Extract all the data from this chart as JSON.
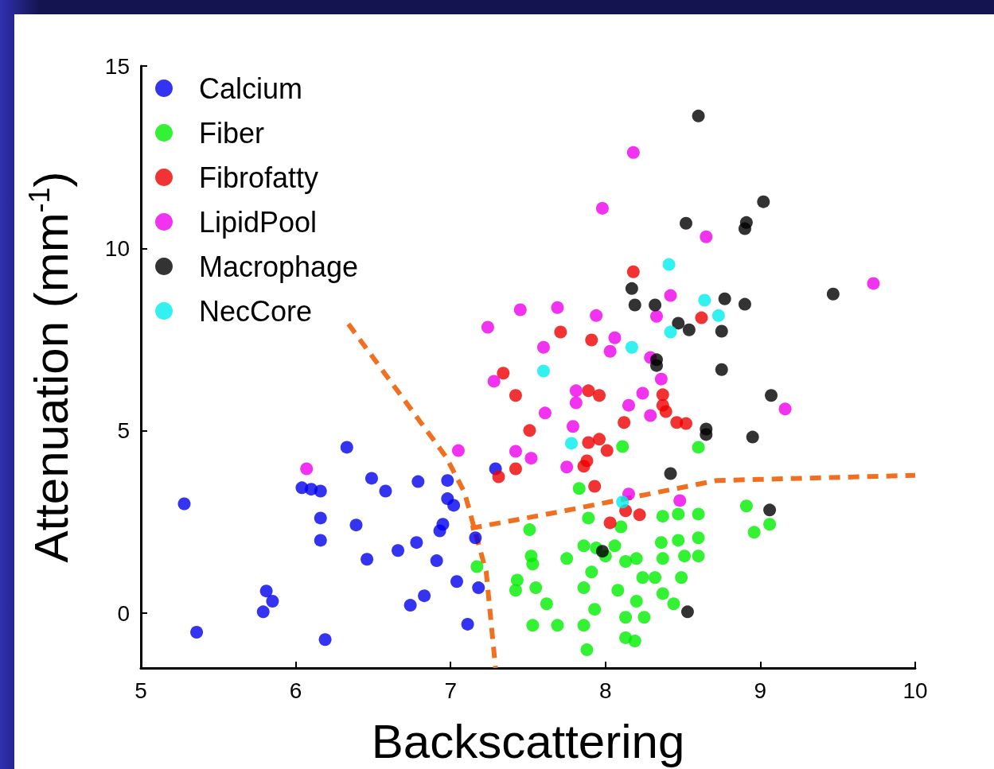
{
  "chart_data": {
    "type": "scatter",
    "xlabel": "Backscattering",
    "ylabel": "Attenuation (mm$^{-1}$)",
    "xlim": [
      5,
      10
    ],
    "ylim": [
      -1.5,
      15
    ],
    "xticks": [
      5,
      6,
      7,
      8,
      9,
      10
    ],
    "yticks": [
      0,
      5,
      10,
      15
    ],
    "grid": false,
    "legend": "top left",
    "marker": "circle",
    "series": [
      {
        "name": "Calcium",
        "color": "#0000ee",
        "x": [
          5.28,
          5.36,
          6.04,
          6.1,
          6.16,
          6.16,
          6.16,
          6.19,
          6.33,
          6.39,
          6.46,
          6.49,
          6.58,
          6.66,
          6.74,
          6.79,
          6.78,
          6.83,
          6.91,
          6.93,
          6.95,
          6.98,
          6.98,
          7.02,
          7.04,
          7.11,
          7.16,
          7.18,
          7.29,
          5.81,
          5.85,
          5.79
        ],
        "values": [
          3.0,
          -0.52,
          3.44,
          3.4,
          3.35,
          2.61,
          2.0,
          -0.72,
          4.55,
          2.42,
          1.48,
          3.7,
          3.35,
          1.72,
          0.22,
          3.61,
          1.94,
          0.48,
          1.44,
          2.26,
          2.44,
          3.64,
          3.14,
          2.96,
          0.87,
          -0.3,
          2.07,
          0.7,
          3.96,
          0.61,
          0.33,
          0.04
        ]
      },
      {
        "name": "Fiber",
        "color": "#00ee00",
        "x": [
          7.17,
          7.51,
          7.52,
          7.53,
          7.43,
          7.42,
          7.55,
          7.62,
          7.69,
          7.53,
          7.86,
          7.88,
          7.93,
          7.75,
          7.86,
          7.91,
          7.86,
          7.89,
          7.83,
          8.06,
          8.13,
          8.2,
          8.24,
          8.08,
          8.2,
          8.13,
          8.25,
          8.13,
          8.19,
          8.37,
          8.44,
          8.32,
          8.37,
          8.47,
          8.6,
          8.36,
          8.47,
          8.6,
          8.37,
          8.51,
          8.6,
          8.49,
          8.1,
          8.11,
          8.6,
          8.91,
          8.96,
          9.06,
          8.0,
          7.94
        ],
        "values": [
          1.28,
          2.29,
          1.57,
          1.35,
          0.91,
          0.63,
          0.7,
          0.26,
          -0.33,
          -0.33,
          -0.33,
          -1.0,
          0.11,
          1.5,
          1.85,
          1.13,
          0.7,
          2.61,
          3.42,
          1.85,
          1.42,
          1.5,
          0.98,
          0.63,
          0.33,
          -0.11,
          -0.11,
          -0.67,
          -0.76,
          0.54,
          0.26,
          0.98,
          2.66,
          2.72,
          2.72,
          1.94,
          2.0,
          2.07,
          1.5,
          1.57,
          1.57,
          0.98,
          2.37,
          4.57,
          4.55,
          2.94,
          2.22,
          2.44,
          1.57,
          1.79
        ]
      },
      {
        "name": "Fibrofatty",
        "color": "#ee0000",
        "x": [
          7.71,
          7.91,
          7.34,
          7.42,
          7.89,
          7.96,
          7.51,
          7.31,
          7.42,
          8.12,
          8.37,
          8.37,
          8.39,
          8.46,
          8.52,
          7.89,
          7.96,
          8.01,
          7.88,
          7.86,
          8.18,
          8.62,
          7.93,
          8.03,
          8.22,
          8.13
        ],
        "values": [
          7.71,
          7.49,
          6.58,
          5.97,
          6.1,
          5.97,
          5.01,
          3.74,
          3.96,
          5.23,
          5.99,
          5.7,
          5.53,
          5.23,
          5.2,
          4.68,
          4.77,
          4.46,
          4.18,
          4.03,
          9.36,
          8.1,
          3.48,
          2.48,
          2.7,
          2.81
        ]
      },
      {
        "name": "LipidPool",
        "color": "#ee00ee",
        "x": [
          8.18,
          7.98,
          8.65,
          9.73,
          9.16,
          7.24,
          7.45,
          7.69,
          7.94,
          8.42,
          8.33,
          7.6,
          8.06,
          8.03,
          7.28,
          7.81,
          7.81,
          7.61,
          7.79,
          8.15,
          8.24,
          8.29,
          8.36,
          8.29,
          7.05,
          7.42,
          7.52,
          7.75,
          6.07,
          8.48,
          8.15
        ],
        "values": [
          12.63,
          11.1,
          10.32,
          9.04,
          5.6,
          7.84,
          8.32,
          8.38,
          8.16,
          8.71,
          8.14,
          7.29,
          7.55,
          7.18,
          6.36,
          6.1,
          5.77,
          5.49,
          5.12,
          5.7,
          6.03,
          5.42,
          6.42,
          7.01,
          4.46,
          4.44,
          4.25,
          4.01,
          3.96,
          3.09,
          3.27
        ]
      },
      {
        "name": "Macrophage",
        "color": "#000000",
        "x": [
          8.6,
          9.02,
          8.52,
          8.9,
          8.91,
          9.47,
          8.77,
          8.17,
          8.19,
          8.32,
          8.9,
          8.47,
          8.54,
          8.75,
          8.33,
          8.33,
          8.75,
          9.07,
          8.65,
          8.65,
          8.95,
          8.42,
          9.06,
          7.98,
          8.53
        ],
        "values": [
          13.63,
          11.28,
          10.69,
          10.54,
          10.71,
          8.75,
          8.62,
          8.9,
          8.45,
          8.45,
          8.47,
          7.95,
          7.77,
          7.73,
          6.95,
          6.79,
          6.68,
          5.97,
          5.05,
          4.9,
          4.83,
          3.83,
          2.83,
          1.7,
          0.04
        ]
      },
      {
        "name": "NecCore",
        "color": "#00eeee",
        "x": [
          8.41,
          8.64,
          8.73,
          8.42,
          8.17,
          7.6,
          7.78,
          8.11
        ],
        "values": [
          9.56,
          8.58,
          8.16,
          7.71,
          7.29,
          6.64,
          4.66,
          3.05
        ]
      },
      {
        "type": "line",
        "color": "#f07020",
        "line_style": "dashed",
        "marker": "none",
        "x": [
          6.34,
          6.97,
          7.09,
          7.23,
          7.29
        ],
        "values": [
          7.93,
          4.29,
          3.31,
          1.13,
          -1.5
        ]
      },
      {
        "type": "line",
        "color": "#f07020",
        "line_style": "dashed",
        "marker": "none",
        "x": [
          7.13,
          7.69,
          8.72,
          10
        ],
        "values": [
          2.33,
          2.77,
          3.64,
          3.78
        ]
      }
    ]
  }
}
